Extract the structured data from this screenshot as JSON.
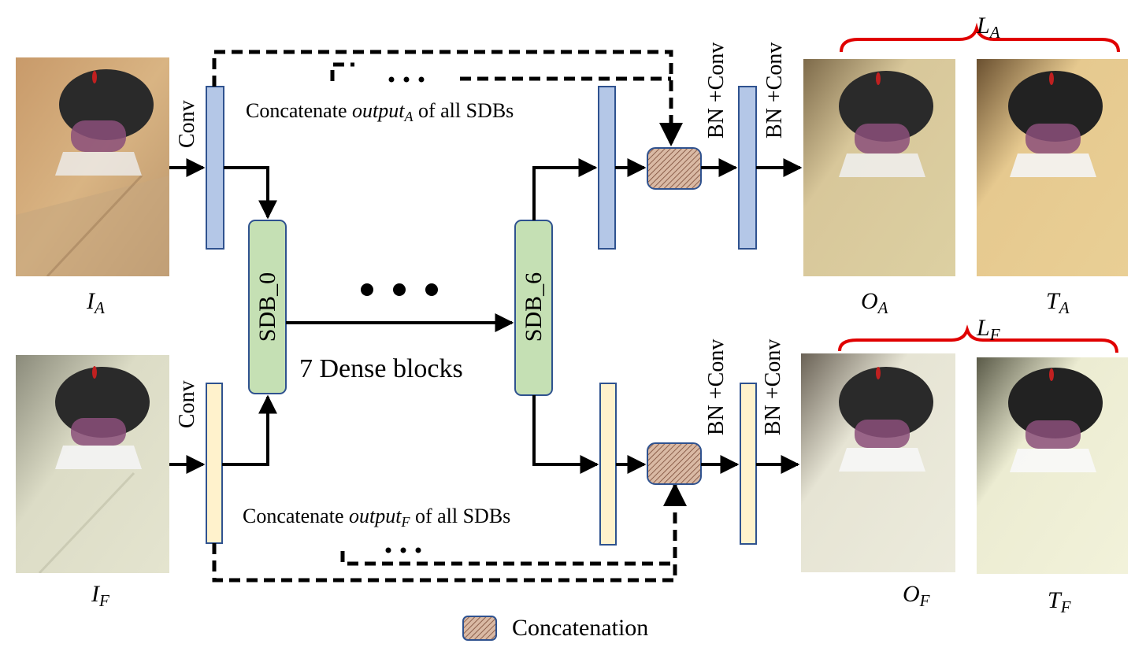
{
  "inputs": {
    "a": {
      "main": "I",
      "sub": "A"
    },
    "f": {
      "main": "I",
      "sub": "F"
    }
  },
  "outputs": {
    "oa": {
      "main": "O",
      "sub": "A"
    },
    "ta": {
      "main": "T",
      "sub": "A"
    },
    "of": {
      "main": "O",
      "sub": "F"
    },
    "tf": {
      "main": "T",
      "sub": "F"
    }
  },
  "losses": {
    "a": {
      "main": "L",
      "sub": "A"
    },
    "f": {
      "main": "L",
      "sub": "F"
    }
  },
  "layers": {
    "conv": "Conv",
    "bn_conv": "BN +Conv"
  },
  "blocks": {
    "first": "SDB_0",
    "last": "SDB_6",
    "summary": "7 Dense blocks"
  },
  "concat": {
    "prefix": "Concatenate",
    "output_word": "output",
    "sub_a": "A",
    "sub_f": "F",
    "suffix": "of  all SDBs"
  },
  "legend": {
    "label": "Concatenation"
  },
  "colors": {
    "branch_a_box": "#b4c7e7",
    "branch_a_border": "#2f528f",
    "branch_f_box": "#fff2cc",
    "branch_f_border": "#2f528f",
    "sdb_fill": "#c5e0b4",
    "sdb_border": "#2f528f",
    "concat_fill": "#c99b82",
    "concat_border": "#2f528f",
    "brace": "#e00000"
  }
}
